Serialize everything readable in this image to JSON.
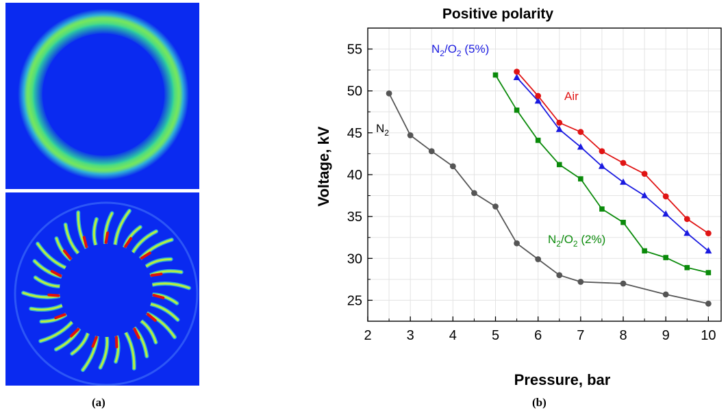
{
  "captions": {
    "a": "(a)",
    "b": "(b)"
  },
  "chart_data": {
    "type": "line",
    "title": "Positive polarity",
    "xlabel": "Pressure, bar",
    "ylabel": "Voltage, kV",
    "xlim": [
      2,
      10.3
    ],
    "ylim": [
      22.5,
      57.5
    ],
    "xticks": [
      2,
      3,
      4,
      5,
      6,
      7,
      8,
      9,
      10
    ],
    "yticks": [
      25,
      30,
      35,
      40,
      45,
      50,
      55
    ],
    "grid": true,
    "series": [
      {
        "name": "N2",
        "color": "#555555",
        "marker": "circle",
        "x": [
          2.5,
          3,
          3.5,
          4,
          4.5,
          5,
          5.5,
          6,
          6.5,
          7,
          8,
          9,
          10
        ],
        "y": [
          49.7,
          44.7,
          42.8,
          41.0,
          37.8,
          36.2,
          31.8,
          29.9,
          28.0,
          27.2,
          27.0,
          25.7,
          24.6
        ]
      },
      {
        "name": "N2/O2 (2%)",
        "color": "#0a8a0a",
        "marker": "square",
        "x": [
          5,
          5.5,
          6,
          6.5,
          7,
          7.5,
          8,
          8.5,
          9,
          9.5,
          10
        ],
        "y": [
          51.9,
          47.7,
          44.1,
          41.2,
          39.5,
          35.9,
          34.3,
          30.9,
          30.1,
          28.9,
          28.3
        ]
      },
      {
        "name": "N2/O2 (5%)",
        "color": "#1a1ae0",
        "marker": "triangle",
        "x": [
          5.5,
          6,
          6.5,
          7,
          7.5,
          8,
          8.5,
          9,
          9.5,
          10
        ],
        "y": [
          51.6,
          48.8,
          45.4,
          43.3,
          41.0,
          39.1,
          37.5,
          35.3,
          33.0,
          30.9
        ]
      },
      {
        "name": "Air",
        "color": "#e01414",
        "marker": "circle",
        "x": [
          5.5,
          6,
          6.5,
          7,
          7.5,
          8,
          8.5,
          9,
          9.5,
          10
        ],
        "y": [
          52.3,
          49.4,
          46.2,
          45.1,
          42.8,
          41.4,
          40.1,
          37.4,
          34.7,
          33.0
        ]
      }
    ],
    "annotations": {
      "n2": {
        "base": "N",
        "sub": "2"
      },
      "n2o2_5": {
        "base1": "N",
        "sub1": "2",
        "slash": "/O",
        "sub2": "2",
        "rest": " (5%)"
      },
      "air": "Air",
      "n2o2_2": {
        "base1": "N",
        "sub1": "2",
        "slash": "/O",
        "sub2": "2",
        "rest": " (2%)"
      }
    }
  }
}
